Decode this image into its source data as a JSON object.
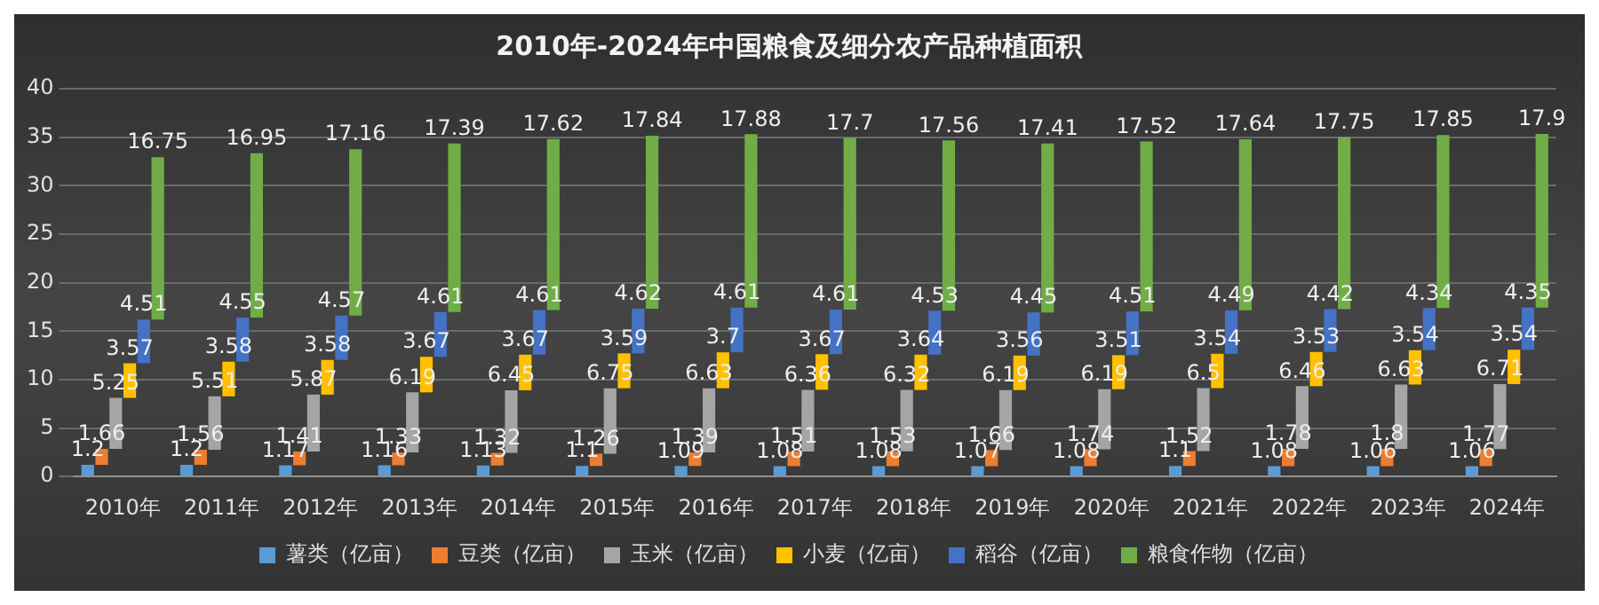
{
  "chart_data": {
    "type": "bar",
    "title": "2010年-2024年中国粮食及细分农产品种植面积",
    "categories": [
      "2010年",
      "2011年",
      "2012年",
      "2013年",
      "2014年",
      "2015年",
      "2016年",
      "2017年",
      "2018年",
      "2019年",
      "2020年",
      "2021年",
      "2022年",
      "2023年",
      "2024年"
    ],
    "stacked": true,
    "data_labels": true,
    "grid": "y",
    "legend": "bottom",
    "ylim": [
      0,
      40
    ],
    "yticks": [
      0,
      5,
      10,
      15,
      20,
      25,
      30,
      35,
      40
    ],
    "series": [
      {
        "name": "薯类（亿亩）",
        "color": "#5b9bd5",
        "values": [
          1.2,
          1.2,
          1.17,
          1.16,
          1.13,
          1.1,
          1.09,
          1.08,
          1.08,
          1.07,
          1.08,
          1.1,
          1.08,
          1.06,
          1.06
        ]
      },
      {
        "name": "豆类（亿亩）",
        "color": "#ed7d31",
        "values": [
          1.66,
          1.56,
          1.41,
          1.33,
          1.32,
          1.26,
          1.39,
          1.51,
          1.53,
          1.66,
          1.74,
          1.52,
          1.78,
          1.8,
          1.77
        ]
      },
      {
        "name": "玉米（亿亩）",
        "color": "#a5a5a5",
        "values": [
          5.25,
          5.51,
          5.87,
          6.19,
          6.45,
          6.75,
          6.63,
          6.36,
          6.32,
          6.19,
          6.19,
          6.5,
          6.46,
          6.63,
          6.71
        ]
      },
      {
        "name": "小麦（亿亩）",
        "color": "#ffc000",
        "values": [
          3.57,
          3.58,
          3.58,
          3.67,
          3.67,
          3.59,
          3.7,
          3.67,
          3.64,
          3.56,
          3.51,
          3.54,
          3.53,
          3.54,
          3.54
        ]
      },
      {
        "name": "稻谷（亿亩）",
        "color": "#4472c4",
        "values": [
          4.51,
          4.55,
          4.57,
          4.61,
          4.61,
          4.62,
          4.61,
          4.61,
          4.53,
          4.45,
          4.51,
          4.49,
          4.42,
          4.34,
          4.35
        ]
      },
      {
        "name": "粮食作物（亿亩）",
        "color": "#70ad47",
        "values": [
          16.75,
          16.95,
          17.16,
          17.39,
          17.62,
          17.84,
          17.88,
          17.7,
          17.56,
          17.41,
          17.52,
          17.64,
          17.75,
          17.85,
          17.9
        ]
      }
    ]
  }
}
